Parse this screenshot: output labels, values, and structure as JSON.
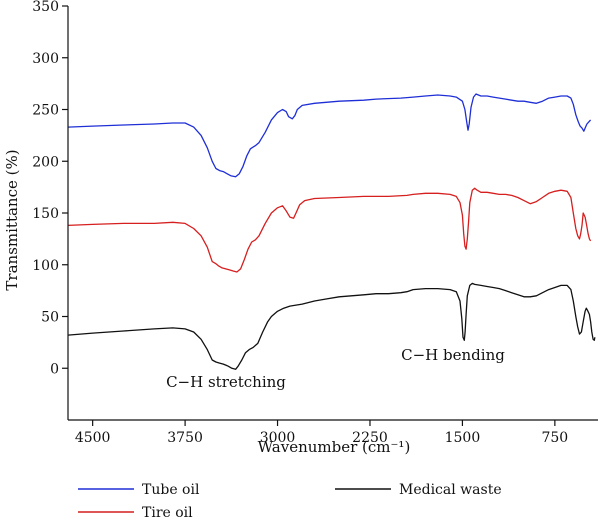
{
  "chart_data": {
    "type": "line",
    "xlabel": "Wavenumber (cm⁻¹)",
    "ylabel": "Transmittance (%)",
    "xlim": [
      4700,
      400
    ],
    "ylim": [
      -50,
      350
    ],
    "x_ticks": [
      4500,
      3750,
      3000,
      2250,
      1500,
      750
    ],
    "y_ticks": [
      0,
      50,
      100,
      150,
      200,
      250,
      300,
      350
    ],
    "grid": false,
    "legend_position": "bottom",
    "annotations": [
      {
        "text": "C−H stretching",
        "x": 3240,
        "y": -15
      },
      {
        "text": "C−H bending",
        "x": 1370,
        "y": 11
      }
    ],
    "series": [
      {
        "name": "Tube oil",
        "color": "#1f2fd6",
        "points": [
          [
            4700,
            233
          ],
          [
            4500,
            234
          ],
          [
            4250,
            235
          ],
          [
            4000,
            236
          ],
          [
            3850,
            237
          ],
          [
            3750,
            237
          ],
          [
            3680,
            233
          ],
          [
            3620,
            225
          ],
          [
            3570,
            213
          ],
          [
            3530,
            200
          ],
          [
            3500,
            193
          ],
          [
            3470,
            191
          ],
          [
            3440,
            190
          ],
          [
            3410,
            188
          ],
          [
            3380,
            186
          ],
          [
            3340,
            185
          ],
          [
            3310,
            188
          ],
          [
            3280,
            195
          ],
          [
            3250,
            205
          ],
          [
            3220,
            212
          ],
          [
            3180,
            215
          ],
          [
            3150,
            218
          ],
          [
            3100,
            228
          ],
          [
            3050,
            240
          ],
          [
            3000,
            247
          ],
          [
            2960,
            250
          ],
          [
            2930,
            248
          ],
          [
            2910,
            243
          ],
          [
            2880,
            241
          ],
          [
            2860,
            244
          ],
          [
            2840,
            250
          ],
          [
            2800,
            254
          ],
          [
            2700,
            256
          ],
          [
            2500,
            258
          ],
          [
            2300,
            259
          ],
          [
            2200,
            260
          ],
          [
            2000,
            261
          ],
          [
            1900,
            262
          ],
          [
            1800,
            263
          ],
          [
            1700,
            264
          ],
          [
            1600,
            263
          ],
          [
            1550,
            262
          ],
          [
            1500,
            258
          ],
          [
            1480,
            250
          ],
          [
            1465,
            238
          ],
          [
            1455,
            230
          ],
          [
            1445,
            236
          ],
          [
            1430,
            252
          ],
          [
            1410,
            262
          ],
          [
            1390,
            265
          ],
          [
            1370,
            264
          ],
          [
            1350,
            263
          ],
          [
            1300,
            263
          ],
          [
            1250,
            262
          ],
          [
            1200,
            261
          ],
          [
            1150,
            260
          ],
          [
            1100,
            259
          ],
          [
            1050,
            258
          ],
          [
            1000,
            258
          ],
          [
            950,
            257
          ],
          [
            900,
            256
          ],
          [
            850,
            258
          ],
          [
            800,
            261
          ],
          [
            750,
            262
          ],
          [
            700,
            263
          ],
          [
            650,
            263
          ],
          [
            620,
            261
          ],
          [
            600,
            255
          ],
          [
            580,
            245
          ],
          [
            560,
            238
          ],
          [
            545,
            234
          ],
          [
            530,
            232
          ],
          [
            515,
            229
          ],
          [
            505,
            232
          ],
          [
            490,
            236
          ],
          [
            475,
            238
          ],
          [
            460,
            240
          ]
        ]
      },
      {
        "name": "Tire oil",
        "color": "#d61f1f",
        "points": [
          [
            4700,
            138
          ],
          [
            4500,
            139
          ],
          [
            4250,
            140
          ],
          [
            4000,
            140
          ],
          [
            3850,
            141
          ],
          [
            3750,
            140
          ],
          [
            3680,
            135
          ],
          [
            3620,
            128
          ],
          [
            3570,
            117
          ],
          [
            3530,
            103
          ],
          [
            3500,
            101
          ],
          [
            3480,
            99
          ],
          [
            3450,
            97
          ],
          [
            3420,
            96
          ],
          [
            3390,
            95
          ],
          [
            3360,
            94
          ],
          [
            3330,
            93
          ],
          [
            3300,
            96
          ],
          [
            3270,
            105
          ],
          [
            3240,
            115
          ],
          [
            3210,
            122
          ],
          [
            3180,
            124
          ],
          [
            3150,
            128
          ],
          [
            3100,
            140
          ],
          [
            3050,
            150
          ],
          [
            3000,
            155
          ],
          [
            2960,
            157
          ],
          [
            2930,
            152
          ],
          [
            2900,
            146
          ],
          [
            2870,
            145
          ],
          [
            2850,
            150
          ],
          [
            2820,
            158
          ],
          [
            2780,
            162
          ],
          [
            2700,
            164
          ],
          [
            2500,
            165
          ],
          [
            2300,
            166
          ],
          [
            2100,
            166
          ],
          [
            1950,
            167
          ],
          [
            1900,
            168
          ],
          [
            1800,
            169
          ],
          [
            1700,
            169
          ],
          [
            1600,
            168
          ],
          [
            1550,
            166
          ],
          [
            1520,
            160
          ],
          [
            1500,
            148
          ],
          [
            1490,
            130
          ],
          [
            1480,
            118
          ],
          [
            1470,
            115
          ],
          [
            1460,
            125
          ],
          [
            1450,
            142
          ],
          [
            1440,
            160
          ],
          [
            1420,
            172
          ],
          [
            1400,
            174
          ],
          [
            1380,
            172
          ],
          [
            1350,
            170
          ],
          [
            1300,
            170
          ],
          [
            1250,
            169
          ],
          [
            1200,
            168
          ],
          [
            1150,
            168
          ],
          [
            1100,
            167
          ],
          [
            1050,
            165
          ],
          [
            1000,
            162
          ],
          [
            950,
            159
          ],
          [
            900,
            161
          ],
          [
            850,
            165
          ],
          [
            800,
            169
          ],
          [
            750,
            171
          ],
          [
            700,
            172
          ],
          [
            650,
            171
          ],
          [
            620,
            165
          ],
          [
            600,
            150
          ],
          [
            580,
            135
          ],
          [
            565,
            128
          ],
          [
            550,
            125
          ],
          [
            540,
            130
          ],
          [
            530,
            138
          ],
          [
            520,
            150
          ],
          [
            505,
            146
          ],
          [
            495,
            140
          ],
          [
            480,
            130
          ],
          [
            470,
            125
          ],
          [
            460,
            123
          ]
        ]
      },
      {
        "name": "Medical waste",
        "color": "#111111",
        "points": [
          [
            4700,
            32
          ],
          [
            4500,
            34
          ],
          [
            4250,
            36
          ],
          [
            4000,
            38
          ],
          [
            3850,
            39
          ],
          [
            3750,
            38
          ],
          [
            3680,
            35
          ],
          [
            3620,
            28
          ],
          [
            3570,
            18
          ],
          [
            3530,
            8
          ],
          [
            3500,
            6
          ],
          [
            3470,
            5
          ],
          [
            3440,
            4
          ],
          [
            3420,
            3
          ],
          [
            3400,
            2
          ],
          [
            3370,
            0
          ],
          [
            3340,
            -1
          ],
          [
            3320,
            2
          ],
          [
            3290,
            8
          ],
          [
            3260,
            15
          ],
          [
            3230,
            18
          ],
          [
            3200,
            20
          ],
          [
            3160,
            24
          ],
          [
            3120,
            35
          ],
          [
            3080,
            45
          ],
          [
            3050,
            50
          ],
          [
            3000,
            55
          ],
          [
            2950,
            58
          ],
          [
            2900,
            60
          ],
          [
            2800,
            62
          ],
          [
            2700,
            65
          ],
          [
            2600,
            67
          ],
          [
            2500,
            69
          ],
          [
            2400,
            70
          ],
          [
            2300,
            71
          ],
          [
            2200,
            72
          ],
          [
            2100,
            72
          ],
          [
            2000,
            73
          ],
          [
            1950,
            74
          ],
          [
            1900,
            76
          ],
          [
            1800,
            77
          ],
          [
            1700,
            77
          ],
          [
            1600,
            76
          ],
          [
            1550,
            74
          ],
          [
            1520,
            65
          ],
          [
            1505,
            48
          ],
          [
            1495,
            30
          ],
          [
            1485,
            27
          ],
          [
            1478,
            35
          ],
          [
            1470,
            52
          ],
          [
            1460,
            70
          ],
          [
            1440,
            80
          ],
          [
            1420,
            82
          ],
          [
            1400,
            81
          ],
          [
            1350,
            80
          ],
          [
            1300,
            79
          ],
          [
            1250,
            78
          ],
          [
            1200,
            77
          ],
          [
            1150,
            75
          ],
          [
            1100,
            73
          ],
          [
            1050,
            71
          ],
          [
            1000,
            69
          ],
          [
            950,
            69
          ],
          [
            900,
            70
          ],
          [
            850,
            73
          ],
          [
            800,
            76
          ],
          [
            750,
            78
          ],
          [
            700,
            80
          ],
          [
            650,
            80
          ],
          [
            620,
            76
          ],
          [
            600,
            65
          ],
          [
            580,
            50
          ],
          [
            565,
            40
          ],
          [
            550,
            33
          ],
          [
            535,
            35
          ],
          [
            520,
            45
          ],
          [
            505,
            55
          ],
          [
            495,
            58
          ],
          [
            485,
            56
          ],
          [
            470,
            52
          ],
          [
            460,
            45
          ],
          [
            450,
            35
          ],
          [
            440,
            28
          ],
          [
            430,
            27
          ],
          [
            425,
            30
          ]
        ]
      }
    ]
  }
}
